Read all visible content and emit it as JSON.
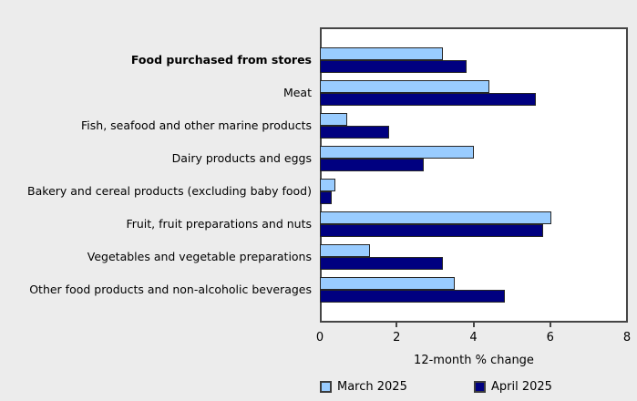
{
  "chart_data": {
    "type": "bar",
    "orientation": "horizontal",
    "title": "",
    "xlabel": "12-month % change",
    "ylabel": "",
    "xlim": [
      0,
      8
    ],
    "xticks": [
      0,
      2,
      4,
      6,
      8
    ],
    "grid": false,
    "legend_position": "bottom",
    "emphasized_category_index": 0,
    "categories": [
      "Food purchased from stores",
      "Meat",
      "Fish, seafood and other marine products",
      "Dairy products and eggs",
      "Bakery and cereal products (excluding baby food)",
      "Fruit, fruit preparations and nuts",
      "Vegetables and vegetable preparations",
      "Other food products and non-alcoholic beverages"
    ],
    "series": [
      {
        "name": "March 2025",
        "color": "#99ccff",
        "values": [
          3.2,
          4.4,
          0.7,
          4.0,
          0.4,
          6.0,
          1.3,
          3.5
        ]
      },
      {
        "name": "April 2025",
        "color": "#000080",
        "values": [
          3.8,
          5.6,
          1.8,
          2.7,
          0.3,
          5.8,
          3.2,
          4.8
        ]
      }
    ]
  },
  "colors": {
    "canvas_background": "#ececec",
    "plot_background": "#ffffff",
    "plot_border": "#454545",
    "bar_border": "#262626",
    "text": "#000000"
  }
}
